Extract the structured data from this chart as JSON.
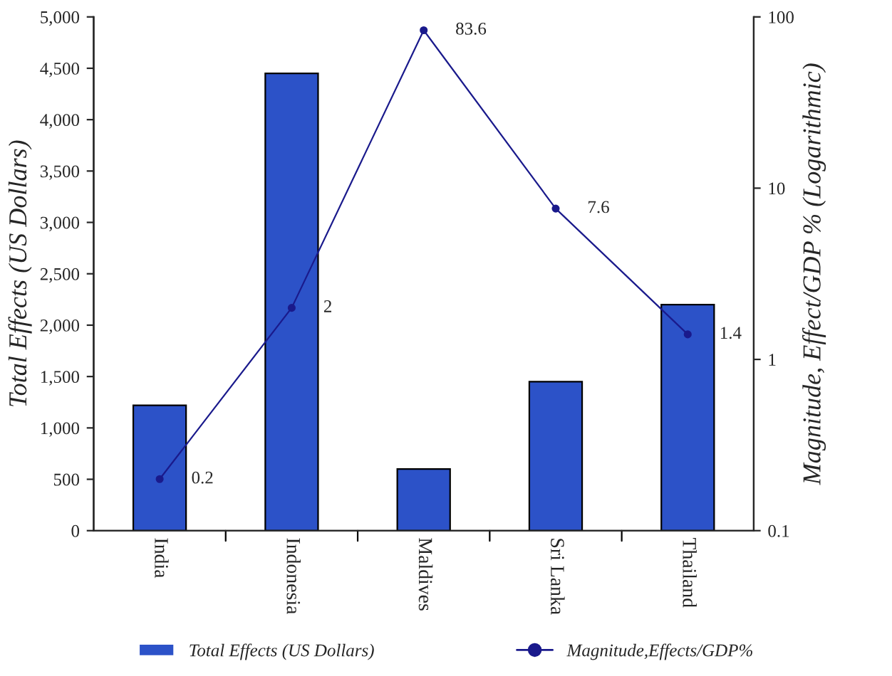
{
  "chart_data": {
    "type": "bar",
    "ylabel": "Total Effects (US Dollars)",
    "y2label": "Magnitude, Effect/GDP % (Logarithmic)",
    "categories": [
      "India",
      "Indonesia",
      "Maldives",
      "Sri Lanka",
      "Thailand"
    ],
    "series": [
      {
        "name": "Total Effects (US Dollars)",
        "color": "#2c52c8",
        "values": [
          1220,
          4450,
          600,
          1450,
          2200
        ]
      },
      {
        "name": "Magnitude,Effects/GDP%",
        "type": "line",
        "axis": "y2",
        "color": "#1a1a8c",
        "marker": "circle",
        "data_labels": true,
        "values": [
          0.2,
          2,
          83.6,
          7.6,
          1.4
        ]
      }
    ],
    "ylim": [
      0,
      5000
    ],
    "yticks": [
      0,
      500,
      {
        "value": 1000,
        "label": "1,000"
      },
      {
        "value": 1500,
        "label": "1,500"
      },
      {
        "value": 2000,
        "label": "2,000"
      },
      {
        "value": 2500,
        "label": "2,500"
      },
      {
        "value": 3000,
        "label": "3,000"
      },
      {
        "value": 3500,
        "label": "3,500"
      },
      {
        "value": 4000,
        "label": "4,000"
      },
      {
        "value": 4500,
        "label": "4,500"
      },
      {
        "value": 5000,
        "label": "5,000"
      }
    ],
    "log": "y2",
    "y2lim": [
      0.1,
      100
    ],
    "y2ticks": [
      0.1,
      1,
      10,
      100
    ],
    "grid": false,
    "legend": "bottom"
  }
}
